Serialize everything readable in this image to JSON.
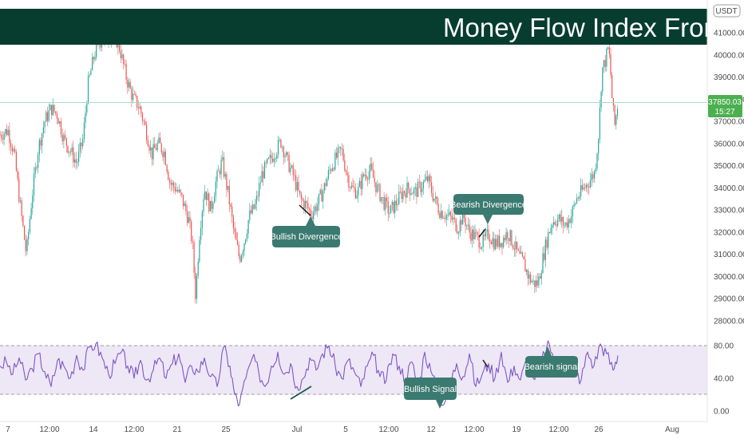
{
  "banner": {
    "title": "Money Flow Index From Scra",
    "color": "#063d2e"
  },
  "currency_badge": "USDT",
  "colors": {
    "up": "#26a69a",
    "down": "#ef5350",
    "mfi_line": "#7e57c2",
    "mfi_band": "#ede7f6",
    "price_tag": "#4caf50",
    "callout": "#3b7a70"
  },
  "chart_data": [
    {
      "type": "candlestick",
      "y_axis_ticks": [
        "41000.00",
        "40000.00",
        "39000.00",
        "38000.00",
        "37000.00",
        "36000.00",
        "35000.00",
        "34000.00",
        "33000.00",
        "32000.00",
        "31000.00",
        "30000.00",
        "29000.00",
        "28000.00"
      ],
      "ylim": [
        27600,
        42400
      ],
      "last_price": {
        "value": "37850.03",
        "countdown": "15:27"
      },
      "price_path": [
        [
          0,
          36400
        ],
        [
          10,
          36600
        ],
        [
          18,
          35500
        ],
        [
          25,
          33300
        ],
        [
          33,
          31000
        ],
        [
          40,
          33600
        ],
        [
          48,
          35800
        ],
        [
          56,
          37000
        ],
        [
          64,
          37600
        ],
        [
          72,
          37300
        ],
        [
          80,
          36200
        ],
        [
          88,
          35700
        ],
        [
          96,
          35100
        ],
        [
          104,
          36200
        ],
        [
          110,
          38600
        ],
        [
          118,
          40000
        ],
        [
          125,
          40600
        ],
        [
          133,
          40800
        ],
        [
          142,
          41000
        ],
        [
          150,
          40300
        ],
        [
          158,
          39000
        ],
        [
          166,
          38100
        ],
        [
          175,
          37600
        ],
        [
          183,
          36600
        ],
        [
          190,
          35500
        ],
        [
          198,
          36000
        ],
        [
          206,
          35600
        ],
        [
          213,
          34200
        ],
        [
          220,
          34000
        ],
        [
          228,
          33500
        ],
        [
          236,
          32600
        ],
        [
          241,
          31500
        ],
        [
          245,
          29100
        ],
        [
          250,
          32000
        ],
        [
          256,
          34000
        ],
        [
          264,
          33000
        ],
        [
          270,
          34200
        ],
        [
          278,
          35200
        ],
        [
          286,
          33700
        ],
        [
          293,
          32000
        ],
        [
          300,
          30800
        ],
        [
          306,
          31600
        ],
        [
          312,
          32700
        ],
        [
          320,
          33200
        ],
        [
          328,
          34600
        ],
        [
          336,
          35100
        ],
        [
          344,
          35600
        ],
        [
          352,
          36100
        ],
        [
          360,
          35200
        ],
        [
          368,
          34500
        ],
        [
          376,
          33500
        ],
        [
          384,
          33200
        ],
        [
          390,
          32800
        ],
        [
          398,
          33300
        ],
        [
          406,
          34000
        ],
        [
          414,
          34900
        ],
        [
          422,
          35400
        ],
        [
          428,
          35700
        ],
        [
          434,
          34700
        ],
        [
          440,
          34000
        ],
        [
          448,
          33800
        ],
        [
          456,
          34600
        ],
        [
          464,
          34800
        ],
        [
          472,
          34000
        ],
        [
          480,
          33400
        ],
        [
          488,
          32900
        ],
        [
          496,
          33300
        ],
        [
          504,
          33800
        ],
        [
          512,
          34000
        ],
        [
          520,
          33800
        ],
        [
          528,
          34100
        ],
        [
          536,
          34400
        ],
        [
          542,
          33700
        ],
        [
          550,
          33000
        ],
        [
          558,
          32800
        ],
        [
          566,
          32600
        ],
        [
          574,
          32200
        ],
        [
          580,
          32800
        ],
        [
          588,
          32000
        ],
        [
          596,
          31800
        ],
        [
          604,
          31500
        ],
        [
          612,
          31900
        ],
        [
          620,
          31500
        ],
        [
          628,
          31600
        ],
        [
          636,
          32000
        ],
        [
          644,
          31400
        ],
        [
          650,
          30900
        ],
        [
          656,
          30600
        ],
        [
          662,
          30000
        ],
        [
          668,
          29700
        ],
        [
          674,
          29700
        ],
        [
          680,
          30800
        ],
        [
          686,
          31800
        ],
        [
          692,
          32500
        ],
        [
          700,
          32600
        ],
        [
          708,
          32300
        ],
        [
          716,
          32800
        ],
        [
          722,
          33500
        ],
        [
          730,
          33900
        ],
        [
          738,
          34300
        ],
        [
          745,
          34700
        ],
        [
          750,
          36500
        ],
        [
          754,
          39300
        ],
        [
          758,
          39700
        ],
        [
          762,
          40300
        ],
        [
          764,
          39700
        ],
        [
          767,
          37900
        ],
        [
          770,
          36800
        ],
        [
          774,
          37850
        ]
      ],
      "annotations": [
        {
          "label": "Bullish Divergence",
          "kind": "bullish"
        },
        {
          "label": "Bearish Divergence",
          "kind": "bearish"
        }
      ]
    },
    {
      "type": "line",
      "name": "Money Flow Index",
      "y_axis_ticks": [
        "80.00",
        "40.00",
        "0.00"
      ],
      "ylim": [
        0,
        88
      ],
      "bands": [
        80,
        20
      ],
      "x": [
        0,
        8,
        16,
        24,
        32,
        40,
        48,
        56,
        64,
        72,
        80,
        88,
        96,
        104,
        112,
        120,
        128,
        136,
        144,
        152,
        160,
        168,
        176,
        184,
        192,
        200,
        208,
        216,
        224,
        232,
        240,
        248,
        256,
        264,
        272,
        280,
        288,
        294,
        300,
        308,
        316,
        324,
        332,
        340,
        348,
        356,
        364,
        372,
        380,
        388,
        396,
        404,
        412,
        420,
        428,
        436,
        444,
        452,
        460,
        468,
        476,
        484,
        492,
        500,
        508,
        516,
        524,
        532,
        540,
        548,
        556,
        564,
        572,
        580,
        588,
        596,
        604,
        612,
        620,
        628,
        636,
        644,
        652,
        660,
        668,
        676,
        682,
        688,
        696,
        704,
        712,
        720,
        728,
        736,
        744,
        752,
        760,
        768,
        774
      ],
      "values": [
        55,
        60,
        45,
        65,
        38,
        52,
        70,
        48,
        30,
        62,
        55,
        40,
        68,
        50,
        78,
        82,
        65,
        45,
        58,
        72,
        55,
        40,
        62,
        38,
        50,
        65,
        40,
        58,
        70,
        35,
        55,
        48,
        65,
        42,
        30,
        78,
        55,
        20,
        8,
        40,
        65,
        48,
        30,
        55,
        72,
        45,
        58,
        30,
        40,
        65,
        50,
        70,
        80,
        55,
        40,
        62,
        48,
        30,
        55,
        68,
        42,
        38,
        70,
        55,
        40,
        60,
        28,
        72,
        48,
        22,
        8,
        35,
        58,
        42,
        70,
        30,
        45,
        58,
        40,
        72,
        35,
        55,
        38,
        62,
        40,
        55,
        70,
        82,
        58,
        45,
        65,
        50,
        38,
        72,
        55,
        82,
        70,
        50,
        68
      ],
      "annotations": [
        {
          "label": "Bullish Signal",
          "kind": "bullish"
        },
        {
          "label": "Bearish signal",
          "kind": "bearish"
        }
      ]
    }
  ],
  "x_axis_ticks": [
    "7",
    "12:00",
    "14",
    "12:00",
    "21",
    "25",
    "Jul",
    "5",
    "12:00",
    "12",
    "12:00",
    "19",
    "12:00",
    "26",
    "Aug"
  ]
}
